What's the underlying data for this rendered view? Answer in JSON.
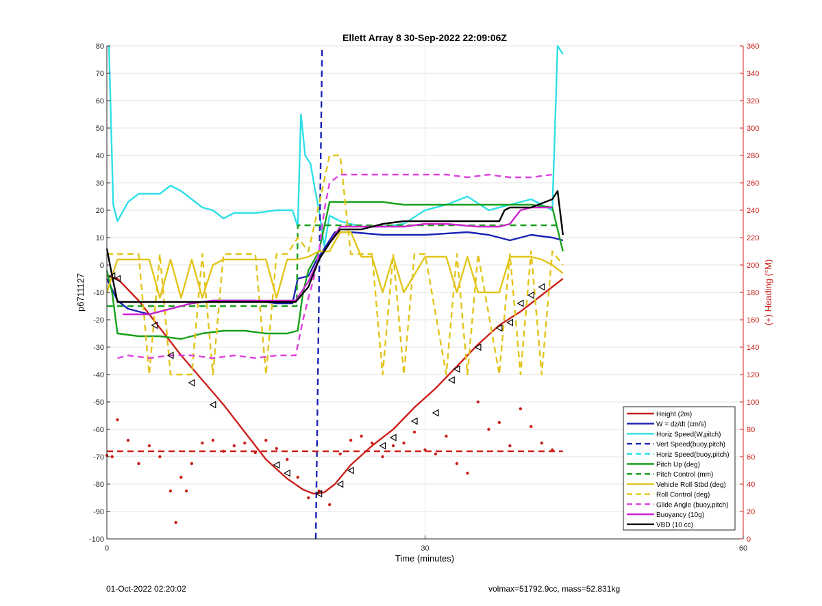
{
  "chart_data": {
    "type": "line",
    "title": "Ellett Array 8 30-Sep-2022 22:09:06Z",
    "xlabel": "Time (minutes)",
    "ylabel": "p6711127",
    "y2label": "(+) Heading (°M)",
    "xlim": [
      0,
      60
    ],
    "ylim": [
      -100,
      80
    ],
    "y2lim": [
      0,
      360
    ],
    "xticks": [
      0,
      30,
      60
    ],
    "yticks": [
      80,
      70,
      60,
      50,
      40,
      30,
      20,
      10,
      0,
      -10,
      -20,
      -30,
      -40,
      -50,
      -60,
      -70,
      -80,
      -90,
      -100
    ],
    "y2ticks": [
      360,
      340,
      320,
      300,
      280,
      260,
      240,
      220,
      200,
      180,
      160,
      140,
      120,
      100,
      80,
      60,
      40,
      20,
      0
    ],
    "grid": true,
    "legend_position": "bottom-right",
    "series": [
      {
        "name": "Height (2m)",
        "color": "#cc1f1a",
        "style": "solid",
        "axis": "left",
        "x": [
          0,
          1,
          3,
          5,
          7,
          9,
          11,
          13,
          15,
          17,
          18.5,
          19.5,
          20.5,
          21.5,
          23,
          25,
          27,
          29,
          31,
          33,
          35,
          37,
          39,
          41,
          43
        ],
        "y": [
          -4,
          -5,
          -13,
          -23,
          -33,
          -42,
          -51,
          -61,
          -71,
          -78,
          -82,
          -83.5,
          -83,
          -80,
          -73,
          -66,
          -60,
          -52,
          -45,
          -37,
          -29,
          -22,
          -17,
          -11,
          -5
        ]
      },
      {
        "name": "W = dz/dt (cm/s)",
        "color": "#1a23b4",
        "style": "solid",
        "axis": "left",
        "x": [
          0,
          1,
          2,
          4,
          6,
          8,
          10,
          12,
          14,
          16,
          17.5,
          18,
          19,
          19.8,
          20.5,
          21.5,
          23,
          26,
          30,
          34,
          36,
          38,
          40,
          42,
          43
        ],
        "y": [
          -5,
          -13,
          -16,
          -18,
          -16,
          -14,
          -13,
          -13,
          -13,
          -14,
          -14,
          -5,
          -4,
          2,
          6,
          12,
          12,
          11,
          11,
          12,
          11,
          9,
          11,
          10,
          9
        ]
      },
      {
        "name": "Horiz Speed(W,pitch)",
        "color": "#2ee0e8",
        "style": "solid",
        "axis": "left",
        "x": [
          0.2,
          0.6,
          1,
          2,
          3,
          4,
          5,
          6,
          7,
          8,
          9,
          10,
          11,
          12,
          14,
          16,
          17.5,
          18,
          18.3,
          18.7,
          19.2,
          19.6,
          20,
          20.5,
          21,
          22,
          24,
          26,
          28,
          30,
          32,
          34,
          36,
          38,
          40,
          41,
          42,
          42.5,
          43
        ],
        "y": [
          80,
          22,
          16,
          23,
          26,
          26,
          26,
          29,
          27,
          24,
          21,
          20,
          17,
          19,
          19,
          20,
          20,
          14,
          55,
          40,
          37,
          28,
          20,
          7,
          18,
          16,
          14,
          14,
          15,
          20,
          22,
          25,
          20,
          22,
          24,
          22,
          20,
          80,
          77
        ]
      },
      {
        "name": "Vert Speed(buoy,pitch)",
        "color": "#1a23b4",
        "style": "dashed",
        "axis": "left",
        "x": [
          19.7,
          20.3
        ],
        "y": [
          -100,
          80
        ]
      },
      {
        "name": "Horiz Speed(buoy,pitch)",
        "color": "#2ee0e8",
        "style": "dashed",
        "axis": "left",
        "x": [],
        "y": []
      },
      {
        "name": "Pitch Up (deg)",
        "color": "#17a01a",
        "style": "solid",
        "axis": "left",
        "x": [
          0,
          0.5,
          1,
          3,
          5,
          7,
          9,
          11,
          13,
          15,
          17,
          18,
          18.5,
          19,
          20,
          21,
          22,
          24,
          26,
          28,
          30,
          32,
          34,
          36,
          38,
          40,
          42,
          43
        ],
        "y": [
          -2,
          -10,
          -25,
          -26,
          -26,
          -27,
          -25,
          -24,
          -24,
          -25,
          -25,
          -24,
          -10,
          -2,
          5,
          23,
          23,
          23,
          23,
          22,
          22,
          22,
          22,
          22,
          22,
          22,
          21,
          5
        ]
      },
      {
        "name": "Pitch Control (mm)",
        "color": "#17a01a",
        "style": "dashed",
        "axis": "left",
        "x": [
          0,
          1,
          17.9,
          18,
          43
        ],
        "y": [
          -15,
          -15,
          -15,
          14.5,
          14.5
        ]
      },
      {
        "name": "Vehicle Roll Stbd (deg)",
        "color": "#e2c41a",
        "style": "solid",
        "axis": "left",
        "x": [
          0,
          1,
          4,
          5,
          6,
          7,
          8,
          9,
          10,
          11,
          15,
          16,
          17,
          18,
          19,
          20,
          21,
          22,
          23,
          24,
          25,
          26,
          27,
          28,
          30,
          32,
          33,
          34,
          35,
          37,
          38,
          40,
          41,
          42,
          43
        ],
        "y": [
          -10,
          2,
          2,
          -12,
          2,
          -12,
          2,
          -12,
          0,
          2,
          2,
          -12,
          2,
          2,
          3,
          5,
          5,
          12,
          12,
          3,
          3,
          -10,
          3,
          -10,
          3,
          3,
          -10,
          3,
          -10,
          -10,
          3,
          3,
          2,
          0,
          -3
        ]
      },
      {
        "name": "Roll Control (deg)",
        "color": "#e2c41a",
        "style": "dashed",
        "axis": "left",
        "x": [
          0,
          1,
          3,
          4,
          5,
          6,
          8,
          9,
          10,
          11,
          14,
          15,
          16,
          17,
          18,
          19,
          20,
          21,
          22,
          23,
          25,
          26,
          27,
          28,
          29,
          30,
          32,
          33,
          34,
          35,
          37,
          38,
          39,
          40,
          41,
          42,
          43
        ],
        "y": [
          4,
          4,
          4,
          -40,
          4,
          -40,
          -40,
          4,
          -40,
          4,
          4,
          -40,
          4,
          4,
          10,
          5,
          22,
          40,
          40,
          4,
          4,
          -40,
          4,
          -40,
          4,
          4,
          -40,
          4,
          -40,
          4,
          -40,
          4,
          -40,
          5,
          -40,
          5,
          0
        ]
      },
      {
        "name": "Glide Angle (buoy,pitch)",
        "color": "#e040e0",
        "style": "dashed",
        "axis": "left",
        "x": [
          1,
          2,
          4,
          6,
          8,
          10,
          12,
          14,
          16,
          17.8,
          18.5,
          19,
          19.5,
          20,
          20.5,
          21,
          22,
          24,
          26,
          28,
          30,
          32,
          34,
          36,
          38,
          40,
          42
        ],
        "y": [
          -34,
          -33,
          -34,
          -33,
          -33,
          -34,
          -33,
          -34,
          -33,
          -33,
          -20,
          -12,
          -5,
          5,
          20,
          30,
          33,
          33,
          33,
          33,
          33,
          33,
          32,
          33,
          32,
          32,
          33
        ]
      },
      {
        "name": "Buoyancy (10g)",
        "color": "#cc22cc",
        "style": "solid",
        "axis": "left",
        "x": [
          1.5,
          4,
          6,
          8,
          10,
          12,
          14,
          16,
          17.8,
          19,
          20,
          21,
          22,
          26,
          28,
          30,
          32,
          35,
          37,
          38,
          39,
          40,
          42
        ],
        "y": [
          -18,
          -18,
          -16,
          -14,
          -13,
          -13,
          -13,
          -13,
          -13,
          -6,
          2,
          8,
          14,
          14,
          14,
          15,
          15,
          14,
          14,
          15,
          20,
          21,
          21
        ]
      },
      {
        "name": "VBD (10 cc)",
        "color": "#000000",
        "style": "solid",
        "axis": "left",
        "x": [
          0,
          0.5,
          1,
          17.8,
          19,
          20,
          21,
          22,
          24,
          26,
          28,
          30,
          33,
          35,
          37,
          37.5,
          38,
          40,
          42,
          42.5,
          43
        ],
        "y": [
          6,
          -4,
          -13.5,
          -13.5,
          -8,
          2,
          8,
          13,
          13,
          15,
          16,
          16,
          16,
          16,
          16,
          20,
          21,
          21,
          24,
          27,
          11
        ]
      },
      {
        "name": "Heading (dots)",
        "color": "#cc1f1a",
        "style": "dots",
        "axis": "right",
        "x": [
          0,
          0.5,
          1,
          2,
          3,
          4,
          5,
          6,
          6.5,
          7,
          7.5,
          8,
          9,
          10,
          11,
          12,
          13,
          14,
          15,
          16,
          17,
          18,
          19,
          20,
          21,
          22,
          23,
          24,
          25,
          26,
          27,
          28,
          29,
          30,
          31,
          32,
          33,
          34,
          35,
          36,
          37,
          38,
          39,
          40,
          41,
          42
        ],
        "y": [
          61,
          60,
          87,
          72,
          55,
          68,
          60,
          35,
          12,
          45,
          35,
          55,
          70,
          72,
          64,
          68,
          70,
          63,
          72,
          66,
          58,
          45,
          30,
          35,
          25,
          62,
          72,
          75,
          70,
          60,
          68,
          70,
          78,
          65,
          62,
          75,
          55,
          48,
          100,
          80,
          85,
          68,
          95,
          82,
          70,
          65
        ]
      },
      {
        "name": "Heading (mean)",
        "color": "#cc1f1a",
        "style": "dashed",
        "axis": "right",
        "x": [
          0,
          43
        ],
        "y": [
          64,
          64
        ]
      }
    ],
    "markers_on_height": {
      "x": [
        0.5,
        1,
        4.5,
        6,
        8,
        10,
        16,
        17,
        20,
        22,
        23,
        26,
        27,
        29,
        31,
        32.5,
        33,
        35,
        37,
        38,
        39,
        40,
        41
      ],
      "y": [
        -4,
        -5,
        -22,
        -33,
        -43,
        -51,
        -73,
        -76,
        -83.5,
        -80,
        -75,
        -66,
        -63,
        -57,
        -54,
        -42,
        -38,
        -30,
        -23,
        -21,
        -14,
        -11,
        -8
      ]
    },
    "legend": [
      "Height (2m)",
      "W = dz/dt (cm/s)",
      "Horiz Speed(W,pitch)",
      "Vert Speed(buoy,pitch)",
      "Horiz Speed(buoy,pitch)",
      "Pitch Up (deg)",
      "Pitch Control (mm)",
      "Vehicle Roll Stbd (deg)",
      "Roll Control (deg)",
      "Glide Angle (buoy,pitch)",
      "Buoyancy (10g)",
      "VBD (10 cc)"
    ]
  },
  "footer": {
    "left": "01-Oct-2022 02:20:02",
    "right": "volmax=51792.9cc, mass=52.831kg"
  }
}
